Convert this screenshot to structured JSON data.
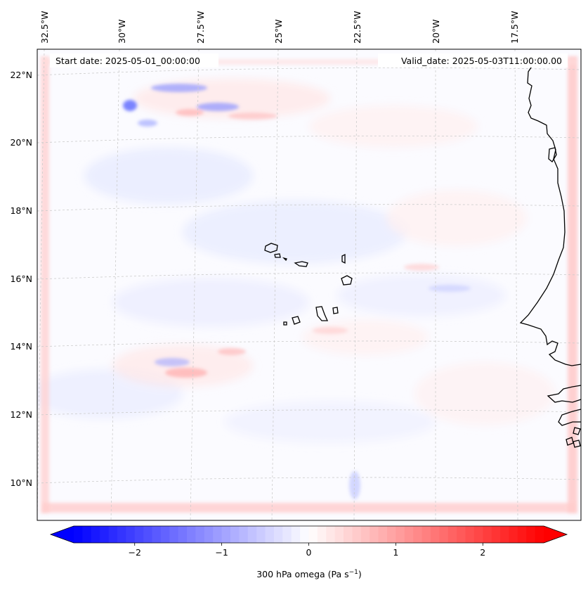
{
  "map": {
    "start_label": "Start date: 2025-05-01_00:00:00",
    "valid_label": "Valid_date: 2025-05-03T11:00:00.00",
    "lon_labels": [
      "32.5°W",
      "30°W",
      "27.5°W",
      "25°W",
      "22.5°W",
      "20°W",
      "17.5°W"
    ],
    "lat_labels": [
      "22°N",
      "20°N",
      "18°N",
      "16°N",
      "14°N",
      "12°N",
      "10°N"
    ],
    "field": "300 hPa omega",
    "field_range": [
      -2.7,
      2.7
    ],
    "coastline_color": "#000000",
    "gridline_color": "#cccccc"
  },
  "colorbar": {
    "label": "300 hPa omega (Pa s",
    "label_exp": "−1",
    "label_close": ")",
    "ticks": [
      {
        "value": -2,
        "text": "−2"
      },
      {
        "value": -1,
        "text": "−1"
      },
      {
        "value": 0,
        "text": "0"
      },
      {
        "value": 1,
        "text": "1"
      },
      {
        "value": 2,
        "text": "2"
      }
    ],
    "vmin": -2.7,
    "vmax": 2.7,
    "extend": "both",
    "colormap": "bwr",
    "color_min": "#0000ff",
    "color_mid": "#ffffff",
    "color_max": "#ff0000"
  }
}
